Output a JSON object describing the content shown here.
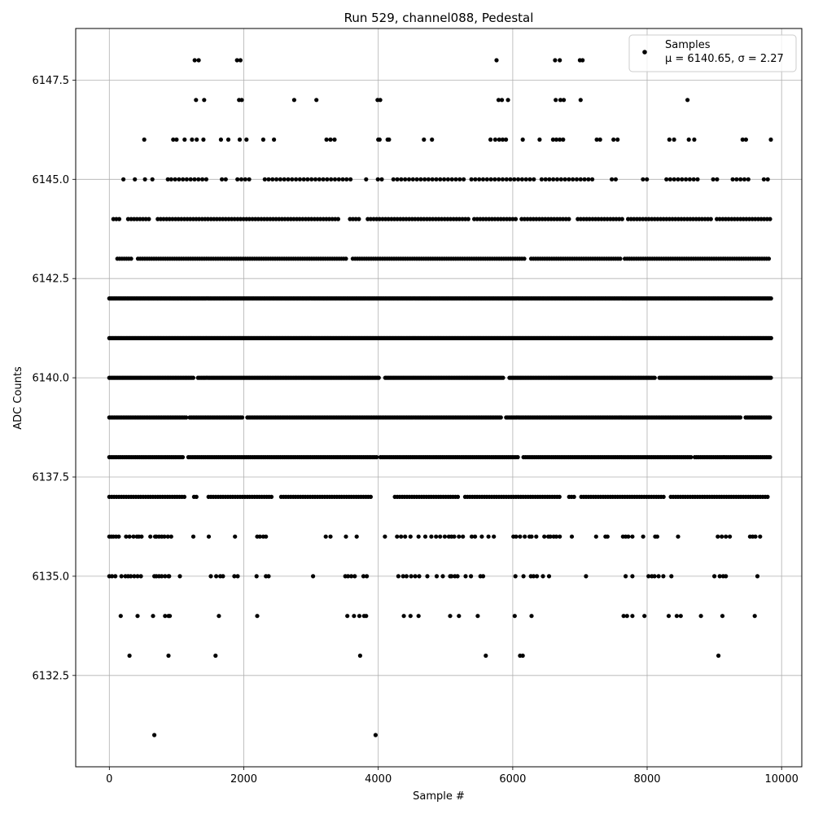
{
  "chart_data": {
    "type": "scatter",
    "title": "Run 529, channel088, Pedestal",
    "xlabel": "Sample #",
    "ylabel": "ADC Counts",
    "xlim": [
      -500,
      10300
    ],
    "ylim": [
      6130.2,
      6148.8
    ],
    "x_ticks": [
      0,
      2000,
      4000,
      6000,
      8000,
      10000
    ],
    "y_ticks": [
      6132.5,
      6135.0,
      6137.5,
      6140.0,
      6142.5,
      6145.0,
      6147.5
    ],
    "x_tick_labels": [
      "0",
      "2000",
      "4000",
      "6000",
      "8000",
      "10000"
    ],
    "y_tick_labels": [
      "6132.5",
      "6135.0",
      "6137.5",
      "6140.0",
      "6142.5",
      "6145.0",
      "6147.5"
    ],
    "grid": true,
    "legend_position": "top-right",
    "marker_color": "#000000",
    "series": [
      {
        "name": "Samples",
        "stats_label": "μ = 6140.65, σ = 2.27",
        "levels": [
          {
            "y": 6148,
            "x": [
              1270,
              1330,
              1900,
              1950,
              5760,
              6630,
              6700,
              7000,
              7040
            ]
          },
          {
            "y": 6147,
            "x": [
              1290,
              1410,
              1930,
              1970,
              2750,
              3080,
              3990,
              4030,
              5790,
              5840,
              5930,
              6640,
              6710,
              6760,
              7010,
              8600
            ]
          },
          {
            "y": 6146,
            "x": [
              520,
              950,
              1000,
              1120,
              1230,
              1300,
              1400,
              1660,
              1770,
              1940,
              2040,
              2290,
              2450,
              3230,
              3290,
              3350,
              4000,
              4020,
              4140,
              4160,
              4680,
              4800,
              5670,
              5740,
              5800,
              5850,
              5900,
              6150,
              6400,
              6600,
              6650,
              6700,
              6750,
              7250,
              7300,
              7500,
              7560,
              8330,
              8400,
              8620,
              8700,
              9420,
              9470,
              9840
            ]
          },
          {
            "y": 6145,
            "sample_xs": [
              210,
              380,
              530,
              640,
              870
            ],
            "x_start": 920,
            "x_end": 9830,
            "step": 58,
            "gaps": [
              [
                1480,
                1640
              ],
              [
                1740,
                1850
              ],
              [
                2120,
                2260
              ],
              [
                3640,
                3780
              ],
              [
                3860,
                3980
              ],
              [
                4060,
                4180
              ],
              [
                5280,
                5380
              ],
              [
                6330,
                6420
              ],
              [
                7220,
                7440
              ],
              [
                7580,
                7900
              ],
              [
                8040,
                8280
              ],
              [
                8780,
                8940
              ],
              [
                9070,
                9220
              ],
              [
                9530,
                9700
              ]
            ]
          },
          {
            "y": 6144,
            "x_start": 60,
            "x_end": 9830,
            "step": 44,
            "gaps": [
              [
                180,
                240
              ],
              [
                620,
                680
              ],
              [
                3440,
                3550
              ],
              [
                3740,
                3830
              ],
              [
                5350,
                5420
              ],
              [
                6080,
                6120
              ],
              [
                6880,
                6960
              ],
              [
                7640,
                7700
              ],
              [
                8960,
                9020
              ]
            ]
          },
          {
            "y": 6143,
            "x_start": 120,
            "x_end": 9840,
            "step": 34,
            "gaps": [
              [
                340,
                410
              ],
              [
                3530,
                3610
              ],
              [
                6200,
                6270
              ],
              [
                7610,
                7650
              ]
            ]
          },
          {
            "y": 6142,
            "x_start": 0,
            "x_end": 9850,
            "step": 19,
            "gaps": []
          },
          {
            "y": 6141,
            "x_start": 0,
            "x_end": 9850,
            "step": 17,
            "gaps": []
          },
          {
            "y": 6140,
            "x_start": 0,
            "x_end": 9840,
            "step": 24,
            "gaps": [
              [
                1270,
                1310
              ],
              [
                4030,
                4080
              ],
              [
                5880,
                5930
              ],
              [
                8120,
                8160
              ]
            ]
          },
          {
            "y": 6139,
            "x_start": 0,
            "x_end": 9840,
            "step": 26,
            "gaps": [
              [
                1150,
                1190
              ],
              [
                2000,
                2040
              ],
              [
                5840,
                5900
              ],
              [
                9410,
                9440
              ]
            ]
          },
          {
            "y": 6138,
            "x_start": 0,
            "x_end": 9840,
            "step": 28,
            "gaps": [
              [
                1100,
                1150
              ],
              [
                3980,
                4020
              ],
              [
                6100,
                6140
              ],
              [
                8660,
                8700
              ]
            ]
          },
          {
            "y": 6137,
            "x_start": 0,
            "x_end": 9810,
            "step": 36,
            "gaps": [
              [
                1120,
                1240
              ],
              [
                1300,
                1450
              ],
              [
                2420,
                2520
              ],
              [
                3900,
                4220
              ],
              [
                5200,
                5260
              ],
              [
                6700,
                6810
              ],
              [
                6940,
                7010
              ],
              [
                8280,
                8330
              ]
            ]
          },
          {
            "y": 6136,
            "x": [
              0,
              30,
              60,
              100,
              140,
              250,
              300,
              360,
              410,
              440,
              480,
              610,
              680,
              700,
              740,
              780,
              820,
              870,
              920,
              1250,
              1480,
              1870,
              2200,
              2240,
              2290,
              2330,
              3220,
              3290,
              3520,
              3680,
              4100,
              4280,
              4340,
              4400,
              4480,
              4600,
              4700,
              4790,
              4860,
              4920,
              4990,
              5050,
              5090,
              5130,
              5200,
              5260,
              5390,
              5440,
              5540,
              5640,
              5720,
              6010,
              6050,
              6110,
              6180,
              6250,
              6280,
              6350,
              6470,
              6530,
              6560,
              6610,
              6650,
              6700,
              6880,
              7240,
              7380,
              7410,
              7640,
              7680,
              7720,
              7780,
              7940,
              8120,
              8150,
              8460,
              9050,
              9110,
              9170,
              9230,
              9530,
              9570,
              9610,
              9680
            ]
          },
          {
            "y": 6135,
            "x": [
              0,
              40,
              90,
              180,
              240,
              280,
              320,
              370,
              420,
              470,
              670,
              700,
              740,
              780,
              830,
              880,
              890,
              1050,
              1510,
              1590,
              1650,
              1690,
              1860,
              1910,
              2190,
              2330,
              2370,
              3030,
              3510,
              3550,
              3600,
              3650,
              3780,
              3830,
              4300,
              4370,
              4420,
              4490,
              4550,
              4610,
              4730,
              4870,
              4960,
              5070,
              5090,
              5140,
              5180,
              5300,
              5380,
              5520,
              5560,
              6040,
              6160,
              6270,
              6310,
              6360,
              6450,
              6540,
              7090,
              7680,
              7780,
              8020,
              8070,
              8110,
              8170,
              8240,
              8360,
              9000,
              9080,
              9130,
              9170,
              9640
            ]
          },
          {
            "y": 6134,
            "x": [
              170,
              420,
              650,
              830,
              880,
              900,
              1630,
              2200,
              3540,
              3640,
              3720,
              3790,
              3820,
              4380,
              4480,
              4600,
              5070,
              5200,
              5480,
              6030,
              6280,
              7650,
              7700,
              7780,
              7960,
              8320,
              8440,
              8500,
              8800,
              9120,
              9600
            ]
          },
          {
            "y": 6133,
            "x": [
              300,
              880,
              1580,
              3730,
              5600,
              6110,
              6150,
              9060
            ]
          },
          {
            "y": 6131,
            "x": [
              670,
              3960
            ]
          }
        ]
      }
    ]
  }
}
